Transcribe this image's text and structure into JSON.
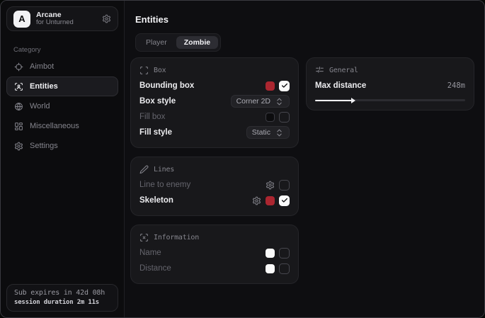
{
  "sidebar": {
    "brand": {
      "initial": "A",
      "title": "Arcane",
      "subtitle": "for Unturned"
    },
    "category_label": "Category",
    "items": [
      {
        "label": "Aimbot",
        "icon": "crosshair-icon",
        "selected": false
      },
      {
        "label": "Entities",
        "icon": "scan-person-icon",
        "selected": true
      },
      {
        "label": "World",
        "icon": "globe-icon",
        "selected": false
      },
      {
        "label": "Miscellaneous",
        "icon": "grid-icon",
        "selected": false
      },
      {
        "label": "Settings",
        "icon": "gear-icon",
        "selected": false
      }
    ],
    "footer": {
      "line1": "Sub expires in 42d 08h",
      "line2": "session duration 2m 11s"
    }
  },
  "main": {
    "title": "Entities",
    "tabs": [
      {
        "label": "Player",
        "active": false
      },
      {
        "label": "Zombie",
        "active": true
      }
    ],
    "sections": [
      {
        "id": "box",
        "column": "left",
        "icon": "scan-icon",
        "title": "Box",
        "rows": [
          {
            "label": "Bounding box",
            "dimmed": false,
            "controls": [
              {
                "type": "swatch",
                "color": "#ab2630"
              },
              {
                "type": "checkbox",
                "checked": true
              }
            ]
          },
          {
            "label": "Box style",
            "dimmed": false,
            "controls": [
              {
                "type": "dropdown",
                "value": "Corner 2D"
              }
            ]
          },
          {
            "label": "Fill box",
            "dimmed": true,
            "controls": [
              {
                "type": "swatch",
                "color": "#0c0c0e",
                "border": true
              },
              {
                "type": "checkbox",
                "checked": false
              }
            ]
          },
          {
            "label": "Fill style",
            "dimmed": false,
            "controls": [
              {
                "type": "dropdown",
                "value": "Static"
              }
            ]
          }
        ]
      },
      {
        "id": "lines",
        "column": "left",
        "icon": "pencil-icon",
        "title": "Lines",
        "rows": [
          {
            "label": "Line to enemy",
            "dimmed": true,
            "controls": [
              {
                "type": "gear"
              },
              {
                "type": "checkbox",
                "checked": false
              }
            ]
          },
          {
            "label": "Skeleton",
            "dimmed": false,
            "controls": [
              {
                "type": "gear"
              },
              {
                "type": "swatch",
                "color": "#ab2630"
              },
              {
                "type": "checkbox",
                "checked": true
              }
            ]
          }
        ]
      },
      {
        "id": "information",
        "column": "left",
        "icon": "information-icon",
        "title": "Information",
        "rows": [
          {
            "label": "Name",
            "dimmed": true,
            "controls": [
              {
                "type": "swatch",
                "color": "#fafafa"
              },
              {
                "type": "checkbox",
                "checked": false
              }
            ]
          },
          {
            "label": "Distance",
            "dimmed": true,
            "controls": [
              {
                "type": "swatch",
                "color": "#fafafa"
              },
              {
                "type": "checkbox",
                "checked": false
              }
            ]
          }
        ]
      },
      {
        "id": "general",
        "column": "right",
        "icon": "sliders-icon",
        "title": "General",
        "rows": [
          {
            "label": "Max distance",
            "dimmed": false,
            "value": "248m",
            "controls": [],
            "slider_percent": 25
          }
        ]
      }
    ]
  },
  "colors": {
    "accent_red": "#ab2630",
    "checkbox_checked": "#fafafa",
    "card_background": "#18181b"
  }
}
